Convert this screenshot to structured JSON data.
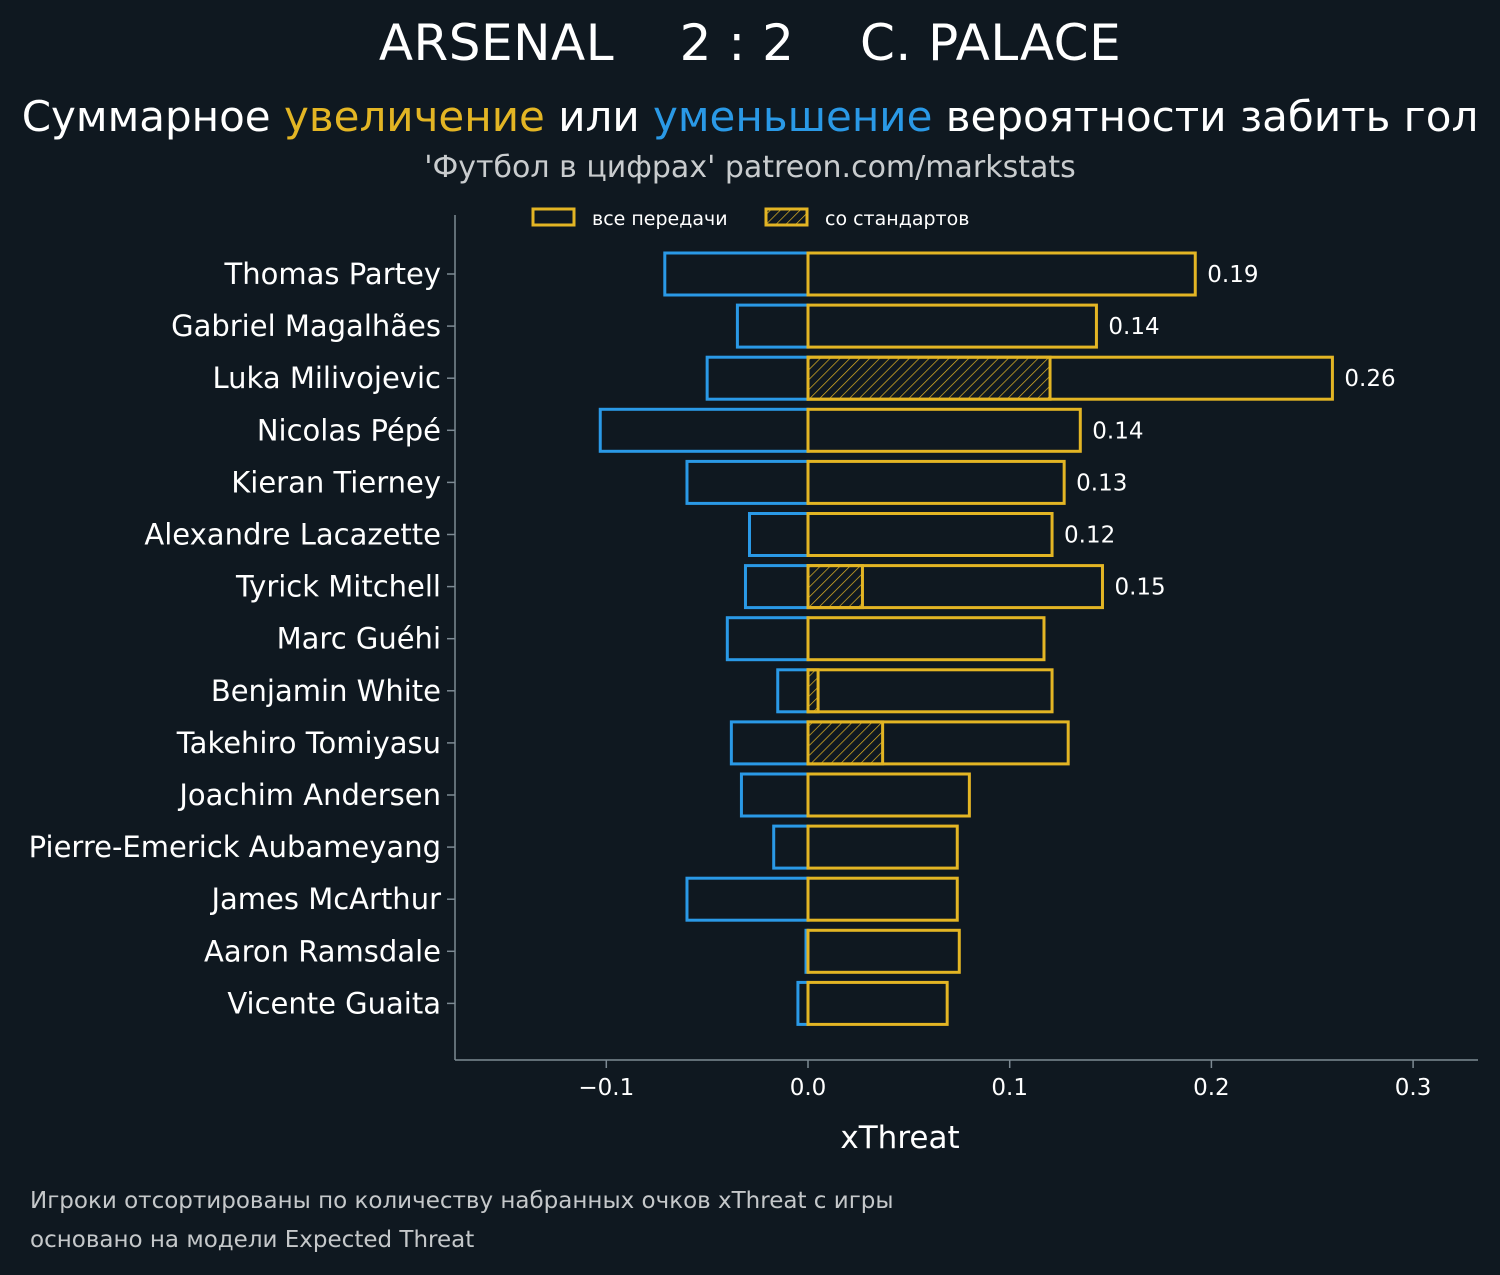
{
  "header": {
    "title": "ARSENAL    2 : 2    C. PALACE",
    "subtitle_part1": "Суммарное ",
    "subtitle_increase": "увеличение",
    "subtitle_part2": " или ",
    "subtitle_decrease": "уменьшение",
    "subtitle_part3": " вероятности забить гол",
    "source": "'Футбол в цифрах' patreon.com/markstats"
  },
  "footnotes": {
    "line1": "Игроки отсортированы по количеству набранных очков xThreat с игры",
    "line2": "основано на модели Expected Threat"
  },
  "colors": {
    "background": "#0f1820",
    "positive": "#e3b524",
    "negative": "#2a99e6",
    "axis": "#7d8a93"
  },
  "chart_data": {
    "type": "bar",
    "orientation": "horizontal",
    "xlabel": "xThreat",
    "xlim": [
      -0.175,
      0.333
    ],
    "xticks": [
      -0.1,
      0.0,
      0.1,
      0.2,
      0.3
    ],
    "xtick_labels": [
      "−0.1",
      "0.0",
      "0.1",
      "0.2",
      "0.3"
    ],
    "legend": {
      "placement": "top",
      "entries": [
        "все передачи",
        "со стандартов"
      ]
    },
    "categories": [
      "Thomas Partey",
      "Gabriel Magalhães",
      "Luka Milivojevic",
      "Nicolas Pépé",
      "Kieran Tierney",
      "Alexandre Lacazette",
      "Tyrick Mitchell",
      "Marc Guéhi",
      "Benjamin White",
      "Takehiro Tomiyasu",
      "Joachim Andersen",
      "Pierre-Emerick Aubameyang",
      "James McArthur",
      "Aaron Ramsdale",
      "Vicente Guaita"
    ],
    "series": [
      {
        "name": "все передачи",
        "values": [
          0.192,
          0.143,
          0.26,
          0.135,
          0.127,
          0.121,
          0.146,
          0.117,
          0.121,
          0.129,
          0.08,
          0.074,
          0.074,
          0.075,
          0.069
        ]
      },
      {
        "name": "со стандартов",
        "values": [
          0,
          0,
          0.12,
          0,
          0,
          0,
          0.027,
          0,
          0.005,
          0.037,
          0,
          0,
          0,
          0,
          0
        ]
      },
      {
        "name": "",
        "values": [
          -0.071,
          -0.035,
          -0.05,
          -0.103,
          -0.06,
          -0.029,
          -0.031,
          -0.04,
          -0.015,
          -0.038,
          -0.033,
          -0.017,
          -0.06,
          -0.001,
          -0.005
        ]
      }
    ],
    "value_labels": [
      "0.19",
      "0.14",
      "0.26",
      "0.14",
      "0.13",
      "0.12",
      "0.15",
      "",
      "",
      "",
      "",
      "",
      "",
      "",
      ""
    ]
  }
}
